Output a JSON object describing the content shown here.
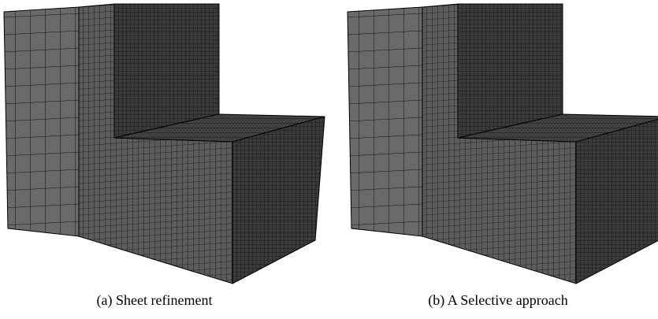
{
  "figure": {
    "subfigures": [
      {
        "caption": "(a) Sheet refinement"
      },
      {
        "caption": "(b) A Selective approach"
      }
    ]
  }
}
